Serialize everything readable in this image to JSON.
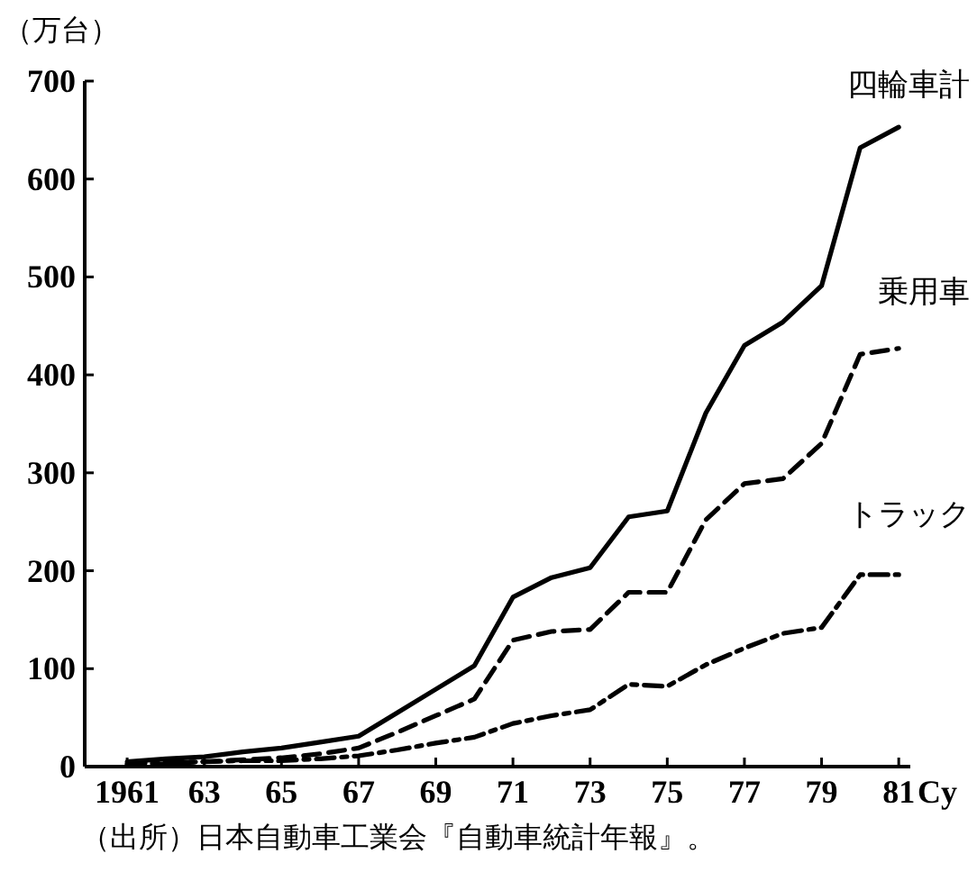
{
  "chart_data": {
    "type": "line",
    "ylabel": "（万台）",
    "xlabel": "Cy",
    "x": [
      1961,
      1962,
      1963,
      1964,
      1965,
      1966,
      1967,
      1968,
      1969,
      1970,
      1971,
      1972,
      1973,
      1974,
      1975,
      1976,
      1977,
      1978,
      1979,
      1980,
      1981
    ],
    "series": [
      {
        "name": "四輪車計",
        "color": "#000000",
        "line_style": "solid",
        "values": [
          5,
          8,
          10,
          15,
          19,
          25,
          31,
          55,
          79,
          103,
          173,
          193,
          203,
          255,
          261,
          361,
          430,
          454,
          491,
          632,
          653
        ]
      },
      {
        "name": "乗用車",
        "color": "#000000",
        "line_style": "dashed",
        "values": [
          2,
          3,
          5,
          7,
          9,
          13,
          19,
          35,
          52,
          69,
          129,
          138,
          140,
          178,
          178,
          252,
          289,
          294,
          330,
          421,
          427
        ]
      },
      {
        "name": "トラック",
        "color": "#000000",
        "line_style": "dashdot",
        "values": [
          3,
          4,
          5,
          6,
          6,
          8,
          11,
          17,
          24,
          30,
          44,
          52,
          58,
          84,
          82,
          104,
          121,
          136,
          142,
          196,
          196
        ]
      }
    ],
    "xlim": [
      1959.9,
      1981.3
    ],
    "xticks": [
      {
        "value": 1961,
        "label": "1961"
      },
      {
        "value": 1963,
        "label": "63"
      },
      {
        "value": 1965,
        "label": "65"
      },
      {
        "value": 1967,
        "label": "67"
      },
      {
        "value": 1969,
        "label": "69"
      },
      {
        "value": 1971,
        "label": "71"
      },
      {
        "value": 1973,
        "label": "73"
      },
      {
        "value": 1975,
        "label": "75"
      },
      {
        "value": 1977,
        "label": "77"
      },
      {
        "value": 1979,
        "label": "79"
      },
      {
        "value": 1981,
        "label": "81"
      }
    ],
    "ylim": [
      0,
      700
    ],
    "yticks": [
      0,
      100,
      200,
      300,
      400,
      500,
      600,
      700
    ],
    "grid": false,
    "annotations": [
      "（出所）日本自動車工業会『自動車統計年報』。"
    ]
  }
}
